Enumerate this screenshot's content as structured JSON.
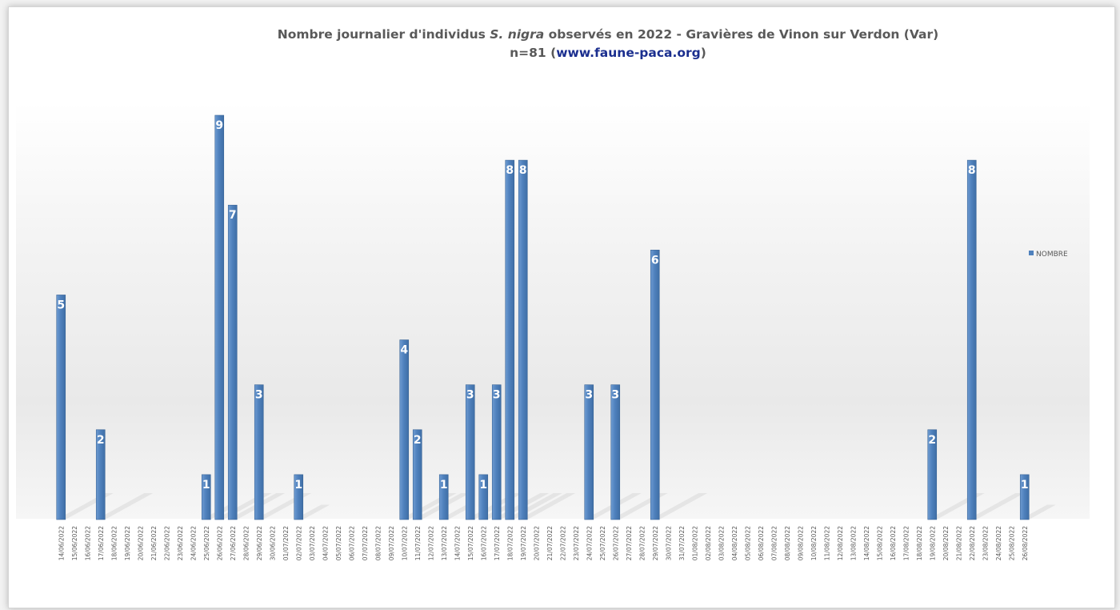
{
  "chart_data": {
    "type": "bar",
    "title_pre": "Nombre journalier d'individus ",
    "title_species": "S. nigra",
    "title_post": " observés en 2022 - Gravières de Vinon sur Verdon (Var)",
    "subtitle_pre": "n=81 (",
    "subtitle_url": "www.faune-paca.org",
    "subtitle_post": ")",
    "legend": "NOMBRE",
    "legend_position": "right",
    "grid": false,
    "bar_color": "#4f81bd",
    "label_color": "#ffffff",
    "ylim": [
      0,
      9
    ],
    "categories": [
      "14/06/2022",
      "15/06/2022",
      "16/06/2022",
      "17/06/2022",
      "18/06/2022",
      "19/06/2022",
      "20/06/2022",
      "21/06/2022",
      "22/06/2022",
      "23/06/2022",
      "24/06/2022",
      "25/06/2022",
      "26/06/2022",
      "27/06/2022",
      "28/06/2022",
      "29/06/2022",
      "30/06/2022",
      "01/07/2022",
      "02/07/2022",
      "03/07/2022",
      "04/07/2022",
      "05/07/2022",
      "06/07/2022",
      "07/07/2022",
      "08/07/2022",
      "09/07/2022",
      "10/07/2022",
      "11/07/2022",
      "12/07/2022",
      "13/07/2022",
      "14/07/2022",
      "15/07/2022",
      "16/07/2022",
      "17/07/2022",
      "18/07/2022",
      "19/07/2022",
      "20/07/2022",
      "21/07/2022",
      "22/07/2022",
      "23/07/2022",
      "24/07/2022",
      "25/07/2022",
      "26/07/2022",
      "27/07/2022",
      "28/07/2022",
      "29/07/2022",
      "30/07/2022",
      "31/07/2022",
      "01/08/2022",
      "02/08/2022",
      "03/08/2022",
      "04/08/2022",
      "05/08/2022",
      "06/08/2022",
      "07/08/2022",
      "08/08/2022",
      "09/08/2022",
      "10/08/2022",
      "11/08/2022",
      "12/08/2022",
      "13/08/2022",
      "14/08/2022",
      "15/08/2022",
      "16/08/2022",
      "17/08/2022",
      "18/08/2022",
      "19/08/2022",
      "20/08/2022",
      "21/08/2022",
      "22/08/2022",
      "23/08/2022",
      "24/08/2022",
      "25/08/2022",
      "26/08/2022"
    ],
    "series": [
      {
        "name": "NOMBRE",
        "values": [
          5,
          null,
          null,
          2,
          null,
          null,
          null,
          null,
          null,
          null,
          null,
          1,
          9,
          7,
          null,
          3,
          null,
          null,
          1,
          null,
          null,
          null,
          null,
          null,
          null,
          null,
          4,
          2,
          null,
          1,
          null,
          3,
          1,
          3,
          8,
          8,
          null,
          null,
          null,
          null,
          3,
          null,
          3,
          null,
          null,
          6,
          null,
          null,
          null,
          null,
          null,
          null,
          null,
          null,
          null,
          null,
          null,
          null,
          null,
          null,
          null,
          null,
          null,
          null,
          null,
          null,
          2,
          null,
          null,
          8,
          null,
          null,
          null,
          1
        ]
      }
    ]
  }
}
